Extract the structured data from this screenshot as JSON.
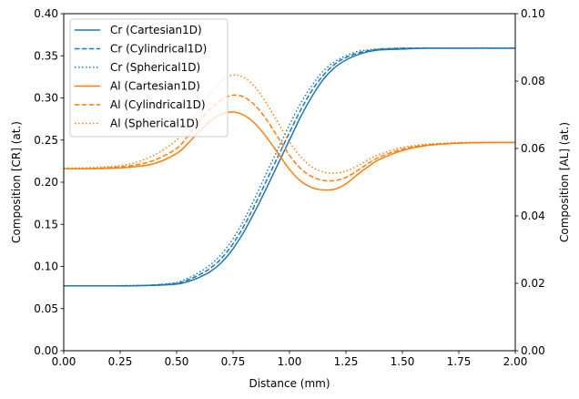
{
  "chart_data": {
    "type": "line",
    "xlabel": "Distance (mm)",
    "ylabel_left": "Composition [CR] (at.)",
    "ylabel_right": "Composition [AL] (at.)",
    "xlim": [
      0,
      2.0
    ],
    "ylim_left": [
      0,
      0.4
    ],
    "ylim_right": [
      0,
      0.1
    ],
    "x_ticks": [
      "0.00",
      "0.25",
      "0.50",
      "0.75",
      "1.00",
      "1.25",
      "1.50",
      "1.75",
      "2.00"
    ],
    "y_ticks_left": [
      "0.00",
      "0.05",
      "0.10",
      "0.15",
      "0.20",
      "0.25",
      "0.30",
      "0.35",
      "0.40"
    ],
    "y_ticks_right": [
      "0.00",
      "0.02",
      "0.04",
      "0.06",
      "0.08",
      "0.10"
    ],
    "legend_position": "top-left",
    "x": [
      0.0,
      0.1,
      0.2,
      0.3,
      0.4,
      0.5,
      0.55,
      0.6,
      0.65,
      0.7,
      0.75,
      0.8,
      0.85,
      0.9,
      0.95,
      1.0,
      1.05,
      1.1,
      1.15,
      1.2,
      1.25,
      1.3,
      1.35,
      1.4,
      1.5,
      1.6,
      1.7,
      1.8,
      1.9,
      2.0
    ],
    "series": [
      {
        "name": "Cr (Cartesian1D)",
        "color": "#1f77b4",
        "dash": "solid",
        "axis": "left",
        "values": [
          0.077,
          0.077,
          0.077,
          0.077,
          0.0775,
          0.079,
          0.082,
          0.087,
          0.094,
          0.105,
          0.121,
          0.142,
          0.167,
          0.194,
          0.222,
          0.25,
          0.278,
          0.302,
          0.322,
          0.336,
          0.345,
          0.351,
          0.355,
          0.357,
          0.358,
          0.359,
          0.359,
          0.359,
          0.359,
          0.359
        ]
      },
      {
        "name": "Cr (Cylindrical1D)",
        "color": "#1f77b4",
        "dash": "dashed",
        "axis": "left",
        "values": [
          0.077,
          0.077,
          0.077,
          0.077,
          0.078,
          0.08,
          0.084,
          0.09,
          0.098,
          0.11,
          0.127,
          0.149,
          0.175,
          0.203,
          0.231,
          0.259,
          0.286,
          0.309,
          0.327,
          0.34,
          0.348,
          0.353,
          0.356,
          0.358,
          0.359,
          0.359,
          0.359,
          0.359,
          0.359,
          0.359
        ]
      },
      {
        "name": "Cr (Spherical1D)",
        "color": "#1f77b4",
        "dash": "dotted",
        "axis": "left",
        "values": [
          0.077,
          0.077,
          0.077,
          0.0775,
          0.078,
          0.081,
          0.086,
          0.093,
          0.102,
          0.115,
          0.133,
          0.156,
          0.183,
          0.212,
          0.24,
          0.268,
          0.294,
          0.315,
          0.332,
          0.343,
          0.35,
          0.355,
          0.357,
          0.358,
          0.359,
          0.359,
          0.359,
          0.359,
          0.359,
          0.359
        ]
      },
      {
        "name": "Al (Cartesian1D)",
        "color": "#ff7f0e",
        "dash": "solid",
        "axis": "right",
        "values": [
          0.054,
          0.054,
          0.0541,
          0.0545,
          0.0555,
          0.0585,
          0.0615,
          0.065,
          0.0682,
          0.0702,
          0.0708,
          0.0698,
          0.0672,
          0.0632,
          0.0585,
          0.0538,
          0.0503,
          0.0484,
          0.0477,
          0.0479,
          0.0495,
          0.0522,
          0.0547,
          0.0568,
          0.0594,
          0.0608,
          0.0614,
          0.0617,
          0.0618,
          0.0618
        ]
      },
      {
        "name": "Al (Cylindrical1D)",
        "color": "#ff7f0e",
        "dash": "dashed",
        "axis": "right",
        "values": [
          0.054,
          0.054,
          0.0543,
          0.0549,
          0.0565,
          0.06,
          0.0637,
          0.068,
          0.0717,
          0.0745,
          0.0758,
          0.0752,
          0.0726,
          0.0684,
          0.0632,
          0.058,
          0.054,
          0.0516,
          0.0505,
          0.0505,
          0.0514,
          0.0534,
          0.0556,
          0.0575,
          0.0598,
          0.061,
          0.0615,
          0.0617,
          0.0618,
          0.0618
        ]
      },
      {
        "name": "Al (Spherical1D)",
        "color": "#ff7f0e",
        "dash": "dotted",
        "axis": "right",
        "values": [
          0.0542,
          0.0543,
          0.0546,
          0.0555,
          0.058,
          0.0625,
          0.0668,
          0.0717,
          0.0765,
          0.0802,
          0.0818,
          0.081,
          0.078,
          0.0732,
          0.0675,
          0.062,
          0.0575,
          0.0545,
          0.053,
          0.0527,
          0.0533,
          0.0548,
          0.0567,
          0.0583,
          0.0603,
          0.0612,
          0.0616,
          0.0618,
          0.0618,
          0.0618
        ]
      }
    ]
  }
}
